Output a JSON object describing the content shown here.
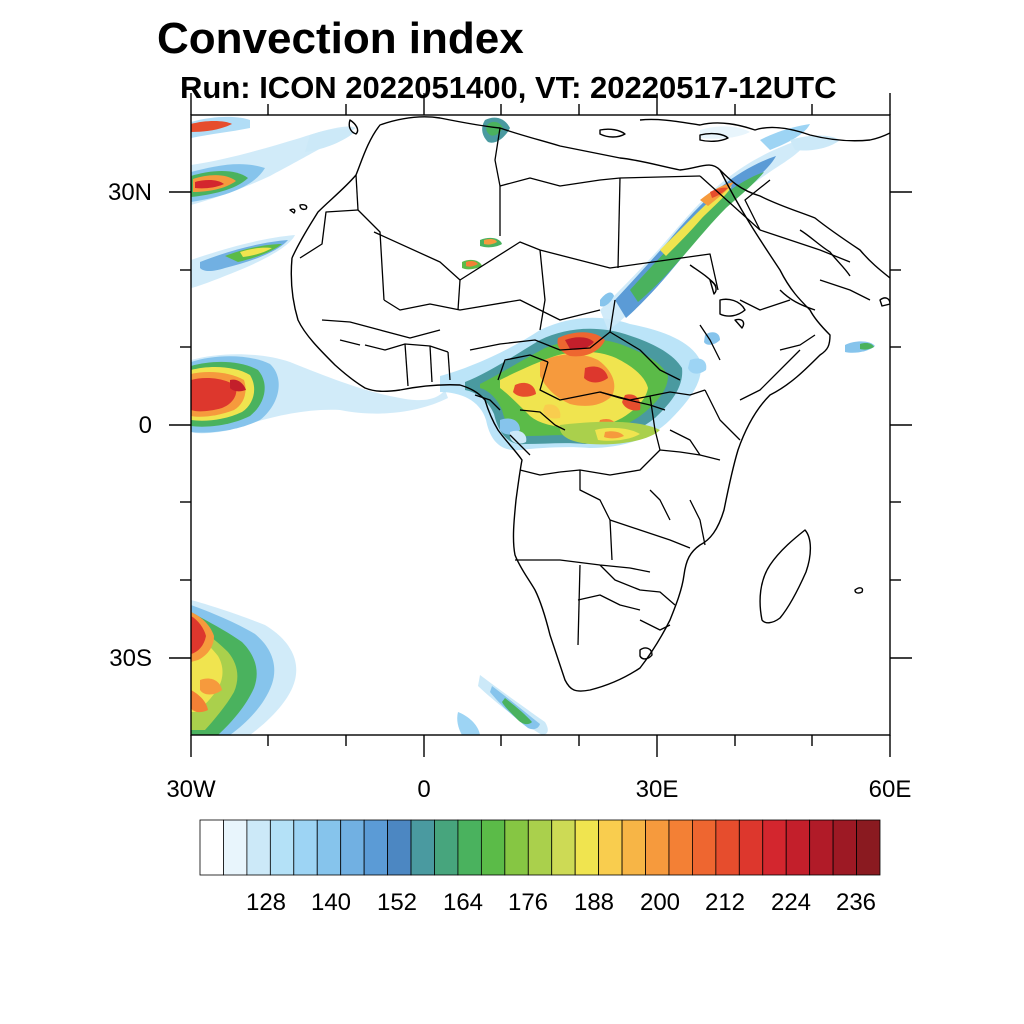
{
  "title": "Convection index",
  "subtitle": "Run: ICON 2022051400,  VT: 20220517-12UTC",
  "lat_labels": [
    "30N",
    "0",
    "30S"
  ],
  "lon_labels": [
    "30W",
    "0",
    "30E",
    "60E"
  ],
  "colorbar": {
    "colors": [
      "#ffffff",
      "#e8f5fc",
      "#cce9f8",
      "#b4e1f7",
      "#9dd4f4",
      "#86c4ec",
      "#71b0e2",
      "#5b9bd6",
      "#4c87c2",
      "#4a9aa0",
      "#47a57d",
      "#4ab25e",
      "#5bbb48",
      "#86c643",
      "#aad04c",
      "#cdda55",
      "#f0e44f",
      "#f9cd4e",
      "#f7b546",
      "#f69a3d",
      "#f38035",
      "#ee6630",
      "#e64d2d",
      "#dd372d",
      "#d3262e",
      "#c31f2b",
      "#b11b28",
      "#9d1924",
      "#8a1a20"
    ],
    "tick_labels": [
      "128",
      "140",
      "152",
      "164",
      "176",
      "188",
      "200",
      "212",
      "224",
      "236"
    ]
  }
}
